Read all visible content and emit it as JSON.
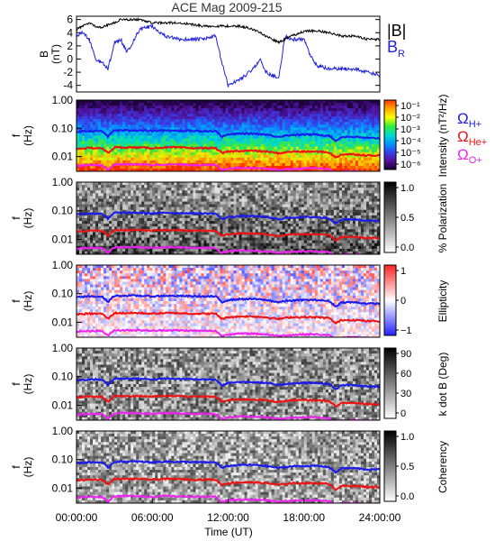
{
  "title": "ACE Mag 2009-215",
  "xlabel": "Time (UT)",
  "x_tick_labels": [
    "00:00:00",
    "06:00:00",
    "12:00:00",
    "18:00:00",
    "24:00:00"
  ],
  "colors": {
    "b_total": "#000000",
    "b_r": "#2222dd",
    "h_plus": "#1a1aee",
    "he_plus": "#ee1111",
    "o_plus": "#ee22ee"
  },
  "legend_top": {
    "b_total": "|B|",
    "b_r_main": "B",
    "b_r_sub": "R"
  },
  "legend_ion": {
    "omega": "Ω",
    "h_plus_sub": "H+",
    "he_plus_sub": "He+",
    "o_plus_sub": "O+"
  },
  "freq_tick_labels": [
    "1.00",
    "0.10",
    "0.01"
  ],
  "freq_ylabel_main": "f",
  "freq_ylabel_unit": "(Hz)",
  "chart_data": [
    {
      "type": "line",
      "panel": "magnetic-field",
      "ylabel_main": "B",
      "ylabel_unit": "(nT)",
      "ylim": [
        -5,
        6.5
      ],
      "yticks": [
        -4,
        -2,
        0,
        2,
        4,
        6
      ],
      "series": [
        {
          "name": "|B|",
          "x_hours": [
            0,
            0.5,
            1,
            1.5,
            2,
            2.5,
            3,
            3.5,
            4,
            5,
            6,
            7,
            8,
            9,
            10,
            11,
            12,
            13,
            14,
            14.5,
            15,
            16,
            16.5,
            17,
            18,
            19,
            20,
            21,
            22,
            23,
            24
          ],
          "values": [
            4.5,
            5.0,
            5.5,
            5.0,
            4.8,
            5.2,
            5.5,
            6.0,
            6.0,
            6.0,
            5.5,
            5.5,
            5.5,
            5.3,
            5.0,
            5.0,
            5.0,
            5.0,
            4.5,
            4.0,
            3.5,
            2.5,
            3.0,
            3.5,
            4.2,
            4.3,
            4.0,
            3.5,
            3.5,
            3.0,
            3.0
          ]
        },
        {
          "name": "B",
          "x_hours": [
            0,
            0.5,
            1,
            1.5,
            2,
            2.5,
            3,
            3.5,
            4,
            5,
            6,
            7,
            8,
            9,
            10,
            11,
            11.5,
            12,
            13,
            14,
            14.5,
            15,
            16,
            16.5,
            17,
            18,
            18.5,
            19,
            20,
            21,
            22,
            23,
            24
          ],
          "values": [
            3.5,
            4.0,
            3.0,
            0.0,
            -0.5,
            -1.5,
            2.5,
            3.0,
            1.0,
            4.5,
            5.0,
            3.5,
            3.0,
            3.0,
            3.0,
            3.5,
            -0.5,
            -4.0,
            -3.0,
            -1.5,
            0.0,
            -2.0,
            -3.0,
            3.5,
            3.0,
            3.0,
            0.5,
            -1.0,
            -1.5,
            -1.5,
            -1.5,
            -2.0,
            -2.5
          ]
        }
      ]
    },
    {
      "type": "heatmap",
      "panel": "intensity",
      "colorbar_label": "Intensity (nT²/Hz)",
      "colorbar_ticks": [
        "10⁻¹",
        "10⁻²",
        "10⁻³",
        "10⁻⁴",
        "10⁻⁵",
        "10⁻⁶"
      ],
      "colorbar_colors": [
        "#ff3300",
        "#ffaa00",
        "#ffff00",
        "#33ee33",
        "#00ddcc",
        "#0099ff",
        "#3344ee",
        "#551199",
        "#110033"
      ],
      "ylim_hz": [
        0.003,
        1.0
      ],
      "yscale": "log"
    },
    {
      "type": "heatmap",
      "panel": "polarization",
      "colorbar_label": "% Polarization",
      "colorbar_ticks": [
        "1.0",
        "0.5",
        "0.0"
      ],
      "colorbar_colors": [
        "#000000",
        "#ffffff"
      ],
      "ylim_hz": [
        0.003,
        1.0
      ],
      "yscale": "log"
    },
    {
      "type": "heatmap",
      "panel": "ellipticity",
      "colorbar_label": "Ellipticity",
      "colorbar_ticks": [
        "1",
        "0",
        "−1"
      ],
      "colorbar_colors": [
        "#ff2222",
        "#ffffff",
        "#2222ff"
      ],
      "ylim_hz": [
        0.003,
        1.0
      ],
      "yscale": "log"
    },
    {
      "type": "heatmap",
      "panel": "k-dot-b",
      "colorbar_label": "k dot B (Deg)",
      "colorbar_ticks": [
        "90",
        "60",
        "30",
        "0"
      ],
      "colorbar_colors": [
        "#000000",
        "#ffffff"
      ],
      "ylim_hz": [
        0.003,
        1.0
      ],
      "yscale": "log"
    },
    {
      "type": "heatmap",
      "panel": "coherency",
      "colorbar_label": "Coherency",
      "colorbar_ticks": [
        "1.0",
        "0.5",
        "0.0"
      ],
      "colorbar_colors": [
        "#000000",
        "#ffffff"
      ],
      "ylim_hz": [
        0.003,
        1.0
      ],
      "yscale": "log"
    },
    {
      "type": "line",
      "panel": "gyrofrequency-overlays",
      "yscale": "log",
      "x_hours": [
        0,
        1,
        2,
        2.5,
        3,
        4,
        5,
        6,
        7,
        8,
        9,
        10,
        11,
        11.5,
        12,
        13,
        14,
        15,
        16,
        16.5,
        17,
        18,
        19,
        20,
        20.5,
        21,
        22,
        23,
        24
      ],
      "series": [
        {
          "name": "H+",
          "values_hz": [
            0.075,
            0.08,
            0.08,
            0.05,
            0.085,
            0.085,
            0.085,
            0.08,
            0.085,
            0.083,
            0.082,
            0.08,
            0.08,
            0.05,
            0.06,
            0.065,
            0.065,
            0.06,
            0.05,
            0.055,
            0.058,
            0.06,
            0.06,
            0.055,
            0.035,
            0.05,
            0.05,
            0.045,
            0.045
          ]
        },
        {
          "name": "He+",
          "values_hz": [
            0.019,
            0.02,
            0.02,
            0.013,
            0.021,
            0.021,
            0.021,
            0.02,
            0.021,
            0.021,
            0.02,
            0.02,
            0.02,
            0.013,
            0.015,
            0.016,
            0.016,
            0.015,
            0.013,
            0.014,
            0.015,
            0.015,
            0.015,
            0.014,
            0.009,
            0.012,
            0.012,
            0.011,
            0.011
          ]
        },
        {
          "name": "O+",
          "values_hz": [
            0.0047,
            0.005,
            0.005,
            0.0033,
            0.0053,
            0.0053,
            0.0053,
            0.005,
            0.0053,
            0.0052,
            0.0051,
            0.005,
            0.005,
            0.0033,
            0.0038,
            0.004,
            0.004,
            0.0038,
            0.0033,
            0.0035,
            0.0036,
            0.0038,
            0.0038,
            0.0035,
            0.0025,
            0.003,
            0.003,
            0.0028,
            0.0028
          ]
        }
      ]
    }
  ]
}
